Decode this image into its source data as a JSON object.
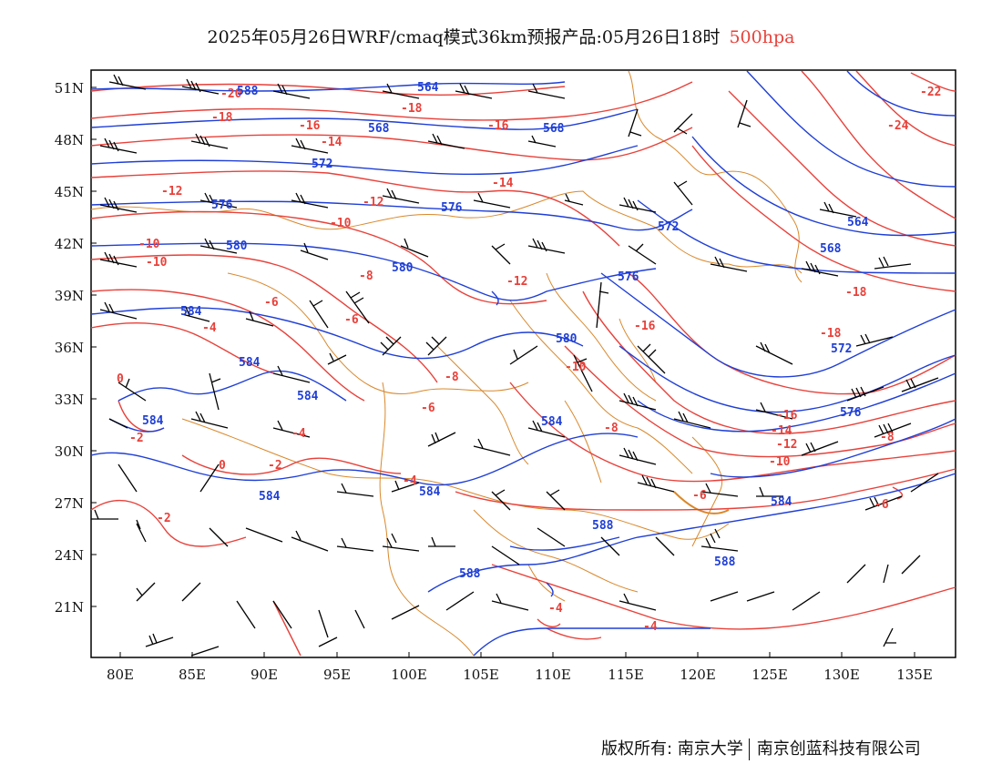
{
  "title": {
    "main": "2025年05月26日WRF/cmaq模式36km预报产品:05月26日18时",
    "level": "500hpa"
  },
  "colors": {
    "temperature": "#e8413a",
    "height": "#1f3fd6",
    "wind": "#000000",
    "borders": "#d9882b",
    "level_text": "#e8413a"
  },
  "lat_ticks": [
    "51N",
    "48N",
    "45N",
    "42N",
    "39N",
    "36N",
    "33N",
    "30N",
    "27N",
    "24N",
    "21N"
  ],
  "lon_ticks": [
    "80E",
    "85E",
    "90E",
    "95E",
    "100E",
    "105E",
    "110E",
    "115E",
    "120E",
    "125E",
    "130E",
    "135E"
  ],
  "temperature_labels": [
    "-20",
    "-18",
    "-18",
    "-16",
    "-16",
    "-14",
    "-14",
    "-12",
    "-12",
    "-10",
    "-10",
    "-10",
    "-8",
    "-12",
    "-6",
    "-16",
    "-4",
    "-6",
    "-18",
    "-18",
    "-8",
    "-10",
    "0",
    "-6",
    "-8",
    "-16",
    "-14",
    "-12",
    "-10",
    "-2",
    "0",
    "-2",
    "-4",
    "-4",
    "-6",
    "-8",
    "-6",
    "-2",
    "-4",
    "-4",
    "-22",
    "-24"
  ],
  "height_labels": [
    "588",
    "564",
    "568",
    "568",
    "572",
    "576",
    "576",
    "580",
    "580",
    "584",
    "584",
    "584",
    "584",
    "584",
    "584",
    "584",
    "588",
    "588",
    "572",
    "576",
    "580",
    "564",
    "568",
    "572",
    "576",
    "584",
    "588"
  ],
  "footer": {
    "left": "版权所有: 南京大学",
    "right": "南京创蓝科技有限公司"
  }
}
